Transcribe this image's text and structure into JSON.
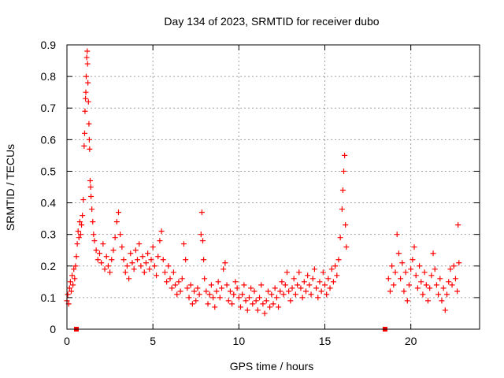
{
  "chart_data": {
    "type": "scatter",
    "title": "Day 134 of 2023, SRMTID for receiver dubo",
    "xlabel": "GPS time / hours",
    "ylabel": "SRMTID / TECUs",
    "xlim": [
      0,
      24
    ],
    "ylim": [
      0,
      0.9
    ],
    "x_ticks": [
      0,
      5,
      10,
      15,
      20
    ],
    "y_ticks": [
      0,
      0.1,
      0.2,
      0.3,
      0.4,
      0.5,
      0.6,
      0.7,
      0.8,
      0.9
    ],
    "x_tick_labels": [
      "0",
      "5",
      "10",
      "15",
      "20"
    ],
    "y_tick_labels": [
      "0",
      "0.1",
      "0.2",
      "0.3",
      "0.4",
      "0.5",
      "0.6",
      "0.7",
      "0.8",
      "0.9"
    ],
    "grid": true,
    "marker": "+",
    "color": "#ff0000",
    "gap_markers": [
      {
        "x": 0.55,
        "y": 0
      },
      {
        "x": 18.5,
        "y": 0
      }
    ],
    "series": [
      {
        "name": "SRMTID",
        "points": [
          [
            0.0,
            0.09
          ],
          [
            0.05,
            0.11
          ],
          [
            0.1,
            0.08
          ],
          [
            0.15,
            0.13
          ],
          [
            0.2,
            0.15
          ],
          [
            0.25,
            0.12
          ],
          [
            0.3,
            0.17
          ],
          [
            0.35,
            0.14
          ],
          [
            0.4,
            0.19
          ],
          [
            0.45,
            0.16
          ],
          [
            0.5,
            0.2
          ],
          [
            0.55,
            0.23
          ],
          [
            0.6,
            0.27
          ],
          [
            0.65,
            0.31
          ],
          [
            0.7,
            0.29
          ],
          [
            0.75,
            0.34
          ],
          [
            0.8,
            0.3
          ],
          [
            0.85,
            0.33
          ],
          [
            0.9,
            0.36
          ],
          [
            0.95,
            0.41
          ],
          [
            1.0,
            0.58
          ],
          [
            1.03,
            0.62
          ],
          [
            1.05,
            0.69
          ],
          [
            1.08,
            0.73
          ],
          [
            1.1,
            0.75
          ],
          [
            1.12,
            0.8
          ],
          [
            1.15,
            0.86
          ],
          [
            1.18,
            0.88
          ],
          [
            1.2,
            0.84
          ],
          [
            1.22,
            0.78
          ],
          [
            1.25,
            0.72
          ],
          [
            1.28,
            0.65
          ],
          [
            1.3,
            0.6
          ],
          [
            1.32,
            0.57
          ],
          [
            1.35,
            0.47
          ],
          [
            1.38,
            0.45
          ],
          [
            1.4,
            0.42
          ],
          [
            1.45,
            0.38
          ],
          [
            1.5,
            0.34
          ],
          [
            1.55,
            0.3
          ],
          [
            1.6,
            0.28
          ],
          [
            1.7,
            0.25
          ],
          [
            1.8,
            0.22
          ],
          [
            1.9,
            0.24
          ],
          [
            2.0,
            0.21
          ],
          [
            2.1,
            0.27
          ],
          [
            2.2,
            0.19
          ],
          [
            2.3,
            0.23
          ],
          [
            2.4,
            0.2
          ],
          [
            2.5,
            0.18
          ],
          [
            2.6,
            0.22
          ],
          [
            2.7,
            0.25
          ],
          [
            2.8,
            0.29
          ],
          [
            2.9,
            0.34
          ],
          [
            3.0,
            0.37
          ],
          [
            3.1,
            0.3
          ],
          [
            3.2,
            0.26
          ],
          [
            3.3,
            0.22
          ],
          [
            3.4,
            0.18
          ],
          [
            3.5,
            0.2
          ],
          [
            3.6,
            0.16
          ],
          [
            3.7,
            0.24
          ],
          [
            3.8,
            0.21
          ],
          [
            3.9,
            0.19
          ],
          [
            4.0,
            0.25
          ],
          [
            4.1,
            0.22
          ],
          [
            4.2,
            0.27
          ],
          [
            4.3,
            0.2
          ],
          [
            4.4,
            0.23
          ],
          [
            4.5,
            0.18
          ],
          [
            4.6,
            0.21
          ],
          [
            4.7,
            0.24
          ],
          [
            4.8,
            0.19
          ],
          [
            4.9,
            0.22
          ],
          [
            5.0,
            0.26
          ],
          [
            5.1,
            0.2
          ],
          [
            5.2,
            0.17
          ],
          [
            5.3,
            0.23
          ],
          [
            5.4,
            0.28
          ],
          [
            5.5,
            0.31
          ],
          [
            5.6,
            0.22
          ],
          [
            5.7,
            0.18
          ],
          [
            5.8,
            0.15
          ],
          [
            5.9,
            0.2
          ],
          [
            6.0,
            0.16
          ],
          [
            6.1,
            0.13
          ],
          [
            6.2,
            0.18
          ],
          [
            6.3,
            0.14
          ],
          [
            6.4,
            0.11
          ],
          [
            6.5,
            0.15
          ],
          [
            6.6,
            0.12
          ],
          [
            6.7,
            0.16
          ],
          [
            6.8,
            0.27
          ],
          [
            6.9,
            0.22
          ],
          [
            7.0,
            0.13
          ],
          [
            7.1,
            0.1
          ],
          [
            7.2,
            0.14
          ],
          [
            7.3,
            0.08
          ],
          [
            7.4,
            0.12
          ],
          [
            7.5,
            0.09
          ],
          [
            7.6,
            0.13
          ],
          [
            7.7,
            0.11
          ],
          [
            7.8,
            0.3
          ],
          [
            7.85,
            0.37
          ],
          [
            7.9,
            0.28
          ],
          [
            7.95,
            0.22
          ],
          [
            8.0,
            0.16
          ],
          [
            8.1,
            0.12
          ],
          [
            8.2,
            0.08
          ],
          [
            8.3,
            0.11
          ],
          [
            8.4,
            0.14
          ],
          [
            8.5,
            0.1
          ],
          [
            8.6,
            0.07
          ],
          [
            8.7,
            0.12
          ],
          [
            8.8,
            0.15
          ],
          [
            8.9,
            0.1
          ],
          [
            9.0,
            0.13
          ],
          [
            9.1,
            0.19
          ],
          [
            9.2,
            0.21
          ],
          [
            9.3,
            0.14
          ],
          [
            9.4,
            0.09
          ],
          [
            9.5,
            0.12
          ],
          [
            9.6,
            0.08
          ],
          [
            9.7,
            0.11
          ],
          [
            9.8,
            0.15
          ],
          [
            9.9,
            0.13
          ],
          [
            10.0,
            0.1
          ],
          [
            10.1,
            0.07
          ],
          [
            10.2,
            0.11
          ],
          [
            10.3,
            0.14
          ],
          [
            10.4,
            0.09
          ],
          [
            10.5,
            0.06
          ],
          [
            10.6,
            0.1
          ],
          [
            10.7,
            0.13
          ],
          [
            10.8,
            0.08
          ],
          [
            10.9,
            0.12
          ],
          [
            11.0,
            0.09
          ],
          [
            11.1,
            0.06
          ],
          [
            11.2,
            0.1
          ],
          [
            11.3,
            0.14
          ],
          [
            11.4,
            0.08
          ],
          [
            11.5,
            0.05
          ],
          [
            11.6,
            0.09
          ],
          [
            11.7,
            0.12
          ],
          [
            11.8,
            0.07
          ],
          [
            11.9,
            0.11
          ],
          [
            12.0,
            0.08
          ],
          [
            12.1,
            0.13
          ],
          [
            12.2,
            0.1
          ],
          [
            12.3,
            0.07
          ],
          [
            12.4,
            0.12
          ],
          [
            12.5,
            0.15
          ],
          [
            12.6,
            0.11
          ],
          [
            12.7,
            0.14
          ],
          [
            12.8,
            0.18
          ],
          [
            12.9,
            0.12
          ],
          [
            13.0,
            0.09
          ],
          [
            13.1,
            0.13
          ],
          [
            13.2,
            0.16
          ],
          [
            13.3,
            0.11
          ],
          [
            13.4,
            0.14
          ],
          [
            13.5,
            0.18
          ],
          [
            13.6,
            0.13
          ],
          [
            13.7,
            0.1
          ],
          [
            13.8,
            0.15
          ],
          [
            13.9,
            0.12
          ],
          [
            14.0,
            0.17
          ],
          [
            14.1,
            0.14
          ],
          [
            14.2,
            0.11
          ],
          [
            14.3,
            0.16
          ],
          [
            14.4,
            0.19
          ],
          [
            14.5,
            0.13
          ],
          [
            14.6,
            0.1
          ],
          [
            14.7,
            0.15
          ],
          [
            14.8,
            0.12
          ],
          [
            14.9,
            0.18
          ],
          [
            15.0,
            0.14
          ],
          [
            15.1,
            0.11
          ],
          [
            15.2,
            0.16
          ],
          [
            15.3,
            0.13
          ],
          [
            15.4,
            0.19
          ],
          [
            15.5,
            0.15
          ],
          [
            15.6,
            0.2
          ],
          [
            15.7,
            0.17
          ],
          [
            15.8,
            0.22
          ],
          [
            15.9,
            0.29
          ],
          [
            16.0,
            0.38
          ],
          [
            16.05,
            0.44
          ],
          [
            16.1,
            0.5
          ],
          [
            16.15,
            0.55
          ],
          [
            16.2,
            0.33
          ],
          [
            16.25,
            0.26
          ],
          [
            18.7,
            0.16
          ],
          [
            18.8,
            0.12
          ],
          [
            18.9,
            0.2
          ],
          [
            19.0,
            0.14
          ],
          [
            19.1,
            0.18
          ],
          [
            19.2,
            0.3
          ],
          [
            19.3,
            0.24
          ],
          [
            19.4,
            0.16
          ],
          [
            19.5,
            0.21
          ],
          [
            19.6,
            0.12
          ],
          [
            19.7,
            0.18
          ],
          [
            19.8,
            0.09
          ],
          [
            19.9,
            0.14
          ],
          [
            20.0,
            0.19
          ],
          [
            20.1,
            0.22
          ],
          [
            20.2,
            0.26
          ],
          [
            20.3,
            0.17
          ],
          [
            20.4,
            0.13
          ],
          [
            20.5,
            0.2
          ],
          [
            20.6,
            0.15
          ],
          [
            20.7,
            0.11
          ],
          [
            20.8,
            0.18
          ],
          [
            20.9,
            0.14
          ],
          [
            21.0,
            0.09
          ],
          [
            21.1,
            0.13
          ],
          [
            21.2,
            0.17
          ],
          [
            21.3,
            0.24
          ],
          [
            21.4,
            0.19
          ],
          [
            21.5,
            0.14
          ],
          [
            21.6,
            0.11
          ],
          [
            21.7,
            0.16
          ],
          [
            21.8,
            0.09
          ],
          [
            21.9,
            0.13
          ],
          [
            22.0,
            0.06
          ],
          [
            22.1,
            0.11
          ],
          [
            22.2,
            0.15
          ],
          [
            22.3,
            0.19
          ],
          [
            22.4,
            0.14
          ],
          [
            22.5,
            0.2
          ],
          [
            22.6,
            0.16
          ],
          [
            22.7,
            0.12
          ],
          [
            22.75,
            0.33
          ],
          [
            22.8,
            0.21
          ]
        ]
      }
    ]
  }
}
